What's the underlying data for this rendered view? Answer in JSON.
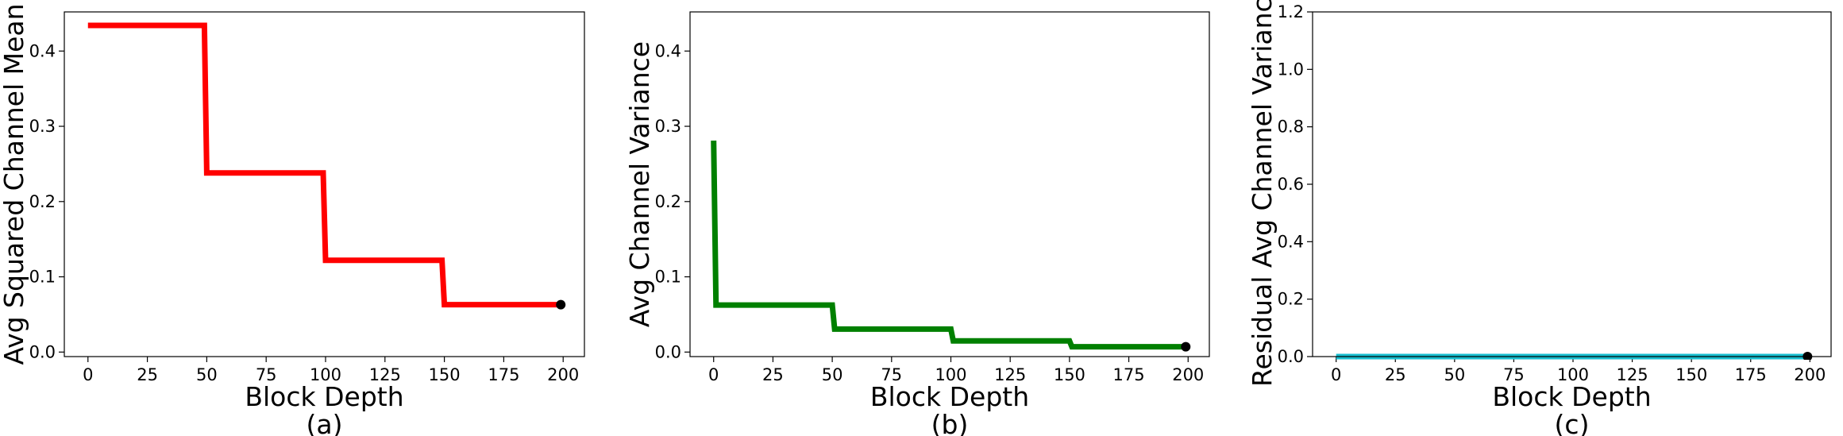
{
  "chart_data": [
    {
      "type": "line",
      "xlabel": "Block Depth",
      "ylabel": "Avg Squared Channel Mean",
      "caption": "(a)",
      "x": [
        0,
        49,
        50,
        99,
        100,
        149,
        150,
        199
      ],
      "series": [
        {
          "color": "#ff0000",
          "values": [
            0.434,
            0.434,
            0.238,
            0.238,
            0.122,
            0.122,
            0.063,
            0.063
          ]
        }
      ],
      "end_marker_color": "#000000",
      "xlim": [
        -9.95,
        208.95
      ],
      "ylim": [
        -0.006,
        0.452
      ],
      "xticks": [
        0,
        25,
        50,
        75,
        100,
        125,
        150,
        175,
        200
      ],
      "yticks": [
        {
          "value": 0,
          "label": "0.0"
        },
        0.1,
        0.2,
        0.3,
        0.4
      ]
    },
    {
      "type": "line",
      "xlabel": "Block Depth",
      "ylabel": "Avg Channel Variance",
      "caption": "(b)",
      "x": [
        0,
        1,
        50,
        51,
        100,
        101,
        150,
        151,
        199
      ],
      "series": [
        {
          "color": "#008000",
          "values": [
            0.281,
            0.0625,
            0.0625,
            0.0305,
            0.0305,
            0.0148,
            0.0148,
            0.0071,
            0.0071
          ]
        }
      ],
      "end_marker_color": "#000000",
      "xlim": [
        -9.95,
        208.95
      ],
      "ylim": [
        -0.006,
        0.452
      ],
      "xticks": [
        0,
        25,
        50,
        75,
        100,
        125,
        150,
        175,
        200
      ],
      "yticks": [
        {
          "value": 0,
          "label": "0.0"
        },
        0.1,
        0.2,
        0.3,
        0.4
      ]
    },
    {
      "type": "line",
      "xlabel": "Block Depth",
      "ylabel": "Residual Avg Channel Variance",
      "caption": "(c)",
      "x": [
        0,
        199
      ],
      "series": [
        {
          "color": "#17becf",
          "values": [
            0,
            0
          ]
        }
      ],
      "end_marker_color": "#000000",
      "xlim": [
        -9.95,
        208.95
      ],
      "ylim": [
        0,
        1.2
      ],
      "xticks": [
        0,
        25,
        50,
        75,
        100,
        125,
        150,
        175,
        200
      ],
      "yticks": [
        {
          "value": 0,
          "label": "0.0"
        },
        0.2,
        0.4,
        0.6,
        0.8,
        {
          "value": 1,
          "label": "1.0"
        },
        1.2
      ]
    }
  ]
}
